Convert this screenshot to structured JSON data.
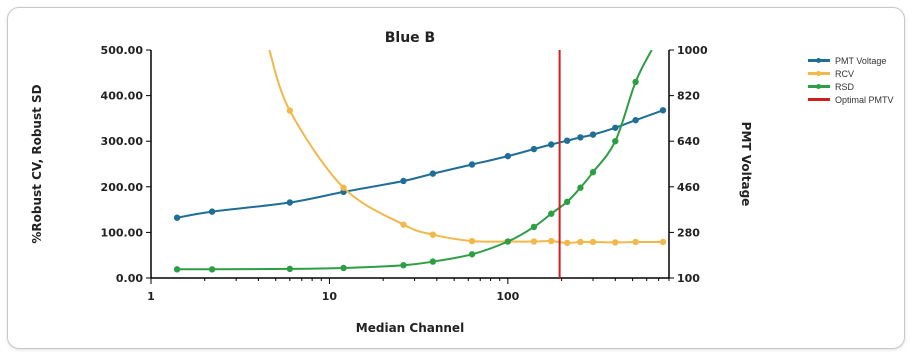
{
  "chart_data": {
    "type": "line",
    "title": "Blue B",
    "xlabel": "Median Channel",
    "ylabel_left": "%Robust CV, Robust SD",
    "ylabel_right": "PMT Voltage",
    "x_scale": "log",
    "xlim": [
      1,
      800
    ],
    "x_ticks": [
      "1",
      "10",
      "100"
    ],
    "ylim_left": [
      0,
      500
    ],
    "y_ticks_left": [
      "0.00",
      "100.00",
      "200.00",
      "300.00",
      "400.00",
      "500.00"
    ],
    "ylim_right": [
      100,
      1000
    ],
    "y_ticks_right": [
      "100",
      "280",
      "460",
      "640",
      "820",
      "1000"
    ],
    "grid": false,
    "legend_position": "right",
    "series": [
      {
        "name": "PMT Voltage",
        "axis": "right",
        "color": "#1e6e96",
        "markers": true,
        "points": [
          [
            1.4,
            338
          ],
          [
            2.2,
            362
          ],
          [
            6,
            398
          ],
          [
            12,
            440
          ],
          [
            26,
            483
          ],
          [
            38,
            512
          ],
          [
            63,
            548
          ],
          [
            100,
            581
          ],
          [
            140,
            609
          ],
          [
            175,
            627
          ],
          [
            215,
            642
          ],
          [
            255,
            655
          ],
          [
            300,
            666
          ],
          [
            400,
            693
          ],
          [
            520,
            723
          ],
          [
            740,
            762
          ]
        ]
      },
      {
        "name": "RCV",
        "axis": "left",
        "color": "#f2b84a",
        "markers": true,
        "points": [
          [
            4.6,
            500
          ],
          [
            6,
            367
          ],
          [
            12,
            198
          ],
          [
            26,
            117
          ],
          [
            38,
            95
          ],
          [
            63,
            81
          ],
          [
            100,
            80
          ],
          [
            140,
            80
          ],
          [
            175,
            81
          ],
          [
            215,
            77
          ],
          [
            255,
            79
          ],
          [
            300,
            79
          ],
          [
            400,
            78
          ],
          [
            520,
            79
          ],
          [
            740,
            79
          ]
        ]
      },
      {
        "name": "RSD",
        "axis": "left",
        "color": "#2e9e44",
        "markers": true,
        "points": [
          [
            1.4,
            19
          ],
          [
            2.2,
            19
          ],
          [
            6,
            20
          ],
          [
            12,
            22
          ],
          [
            26,
            28
          ],
          [
            38,
            36
          ],
          [
            63,
            52
          ],
          [
            100,
            80
          ],
          [
            140,
            112
          ],
          [
            175,
            141
          ],
          [
            215,
            167
          ],
          [
            255,
            198
          ],
          [
            300,
            232
          ],
          [
            400,
            300
          ],
          [
            520,
            430
          ],
          [
            640,
            500
          ]
        ]
      },
      {
        "name": "Optimal PMTV",
        "axis": "left",
        "color": "#d01f1f",
        "markers": false,
        "vline_x": 195
      }
    ]
  }
}
